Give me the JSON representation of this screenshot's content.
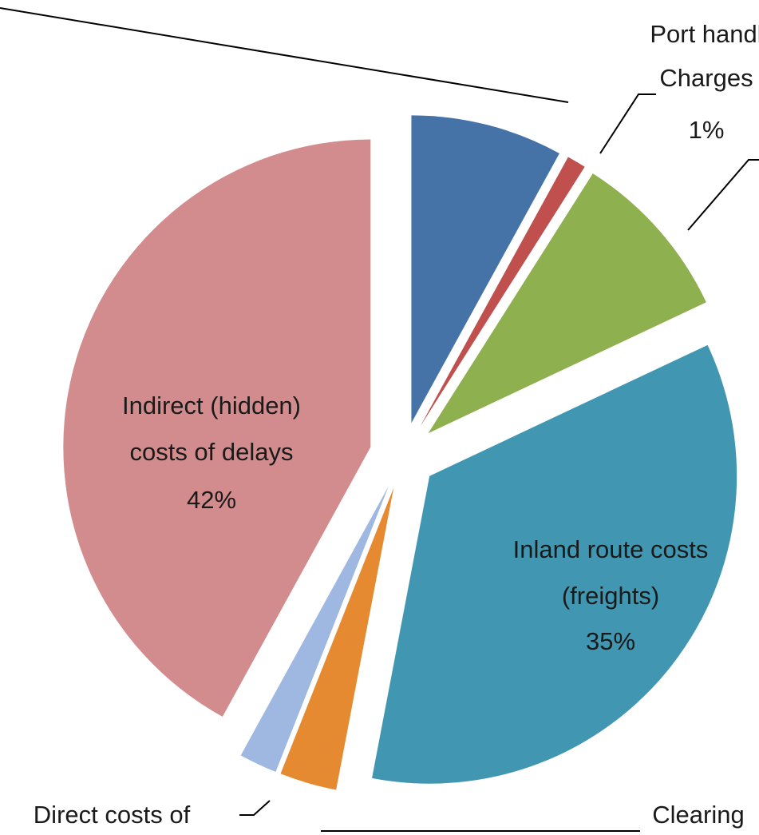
{
  "chart_data": {
    "type": "pie",
    "categories": [
      null,
      [
        "Port handl",
        "Charges"
      ],
      null,
      [
        "Inland route costs",
        "(freights)"
      ],
      [
        "Clearing"
      ],
      [
        "Direct costs of"
      ],
      [
        "Indirect (hidden)",
        "costs of delays"
      ]
    ],
    "values": [
      8,
      1,
      9,
      35,
      3,
      2,
      42
    ],
    "value_labels": [
      null,
      "1%",
      null,
      "35%",
      null,
      null,
      "42%"
    ],
    "colors": [
      "#4572a7",
      "#c0504d",
      "#8eb04f",
      "#4197b1",
      "#e68a31",
      "#9fb8e1",
      "#d38c8d"
    ]
  }
}
